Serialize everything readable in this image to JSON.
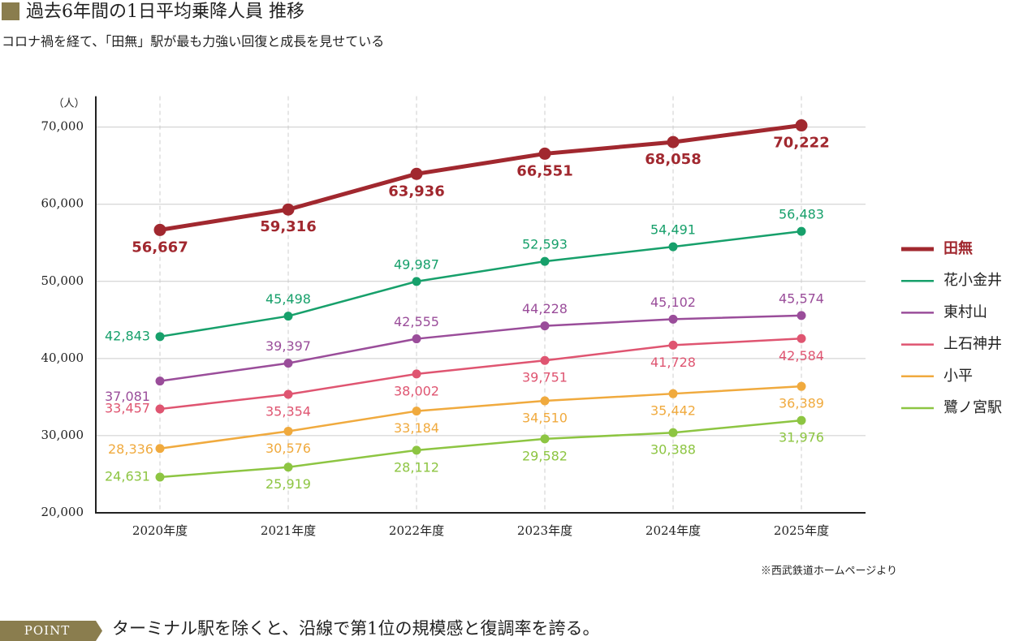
{
  "chart_data": {
    "type": "line",
    "title": "過去6年間の1日平均乗降人員 推移",
    "subtitle": "コロナ禍を経て、「田無」駅が最も力強い回復と成長を見せている",
    "y_unit": "（人）",
    "categories": [
      "2020年度",
      "2021年度",
      "2022年度",
      "2023年度",
      "2024年度",
      "2025年度"
    ],
    "series": [
      {
        "name": "田無",
        "color": "#a1282f",
        "values": [
          56667,
          59316,
          63936,
          66551,
          68058,
          70222
        ],
        "value_labels": [
          "56,667",
          "59,316",
          "63,936",
          "66,551",
          "68,058",
          "70,222"
        ]
      },
      {
        "name": "花小金井",
        "color": "#17a06b",
        "values": [
          42843,
          45498,
          49987,
          52593,
          54491,
          56483
        ],
        "value_labels": [
          "42,843",
          "45,498",
          "49,987",
          "52,593",
          "54,491",
          "56,483"
        ]
      },
      {
        "name": "東村山",
        "color": "#9a4d9a",
        "values": [
          37081,
          39397,
          42555,
          44228,
          45102,
          45574
        ],
        "value_labels": [
          "37,081",
          "39,397",
          "42,555",
          "44,228",
          "45,102",
          "45,574"
        ]
      },
      {
        "name": "上石神井",
        "color": "#df5571",
        "values": [
          33457,
          35354,
          38002,
          39751,
          41728,
          42584
        ],
        "value_labels": [
          "33,457",
          "35,354",
          "38,002",
          "39,751",
          "41,728",
          "42,584"
        ]
      },
      {
        "name": "小平",
        "color": "#f0aa3e",
        "values": [
          28336,
          30576,
          33184,
          34510,
          35442,
          36389
        ],
        "value_labels": [
          "28,336",
          "30,576",
          "33,184",
          "34,510",
          "35,442",
          "36,389"
        ]
      },
      {
        "name": "鷺ノ宮駅",
        "color": "#8dc542",
        "values": [
          24631,
          25919,
          28112,
          29582,
          30388,
          31976
        ],
        "value_labels": [
          "24,631",
          "25,919",
          "28,112",
          "29,582",
          "30,388",
          "31,976"
        ]
      }
    ],
    "ylim": [
      20000,
      74000
    ],
    "yticks": [
      {
        "value": 20000,
        "label": "20,000"
      },
      {
        "value": 30000,
        "label": "30,000"
      },
      {
        "value": 40000,
        "label": "40,000"
      },
      {
        "value": 50000,
        "label": "50,000"
      },
      {
        "value": 60000,
        "label": "60,000"
      },
      {
        "value": 70000,
        "label": "70,000"
      }
    ],
    "grid": true,
    "legend": "right"
  },
  "note": "※西武鉄道ホームページより",
  "point": {
    "label": "POINT",
    "text": "ターミナル駅を除くと、沿線で第1位の規模感と復調率を誇る。"
  }
}
